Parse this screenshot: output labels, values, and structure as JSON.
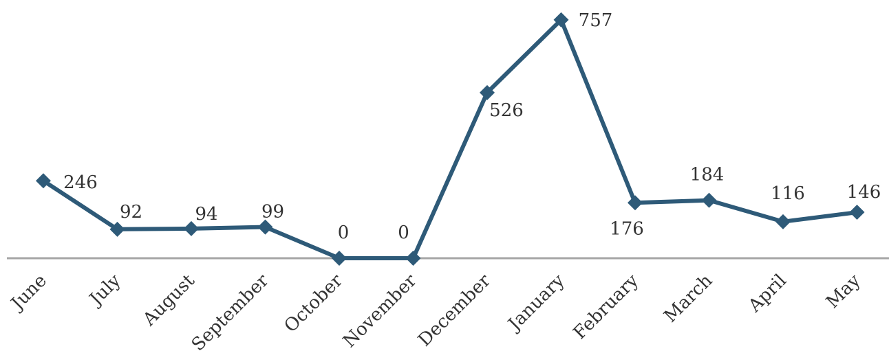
{
  "chart_data": {
    "type": "line",
    "title": "",
    "xlabel": "",
    "ylabel": "",
    "categories": [
      "June",
      "July",
      "August",
      "September",
      "October",
      "November",
      "December",
      "January",
      "February",
      "March",
      "April",
      "May"
    ],
    "series": [
      {
        "values": [
          246,
          92,
          94,
          99,
          0,
          0,
          526,
          757,
          176,
          184,
          116,
          146
        ],
        "color": "#2e5a78",
        "marker": "diamond"
      }
    ],
    "ylim": [
      0,
      800
    ],
    "grid": false,
    "legend": "none",
    "baseline_color": "#a6a6a6"
  }
}
